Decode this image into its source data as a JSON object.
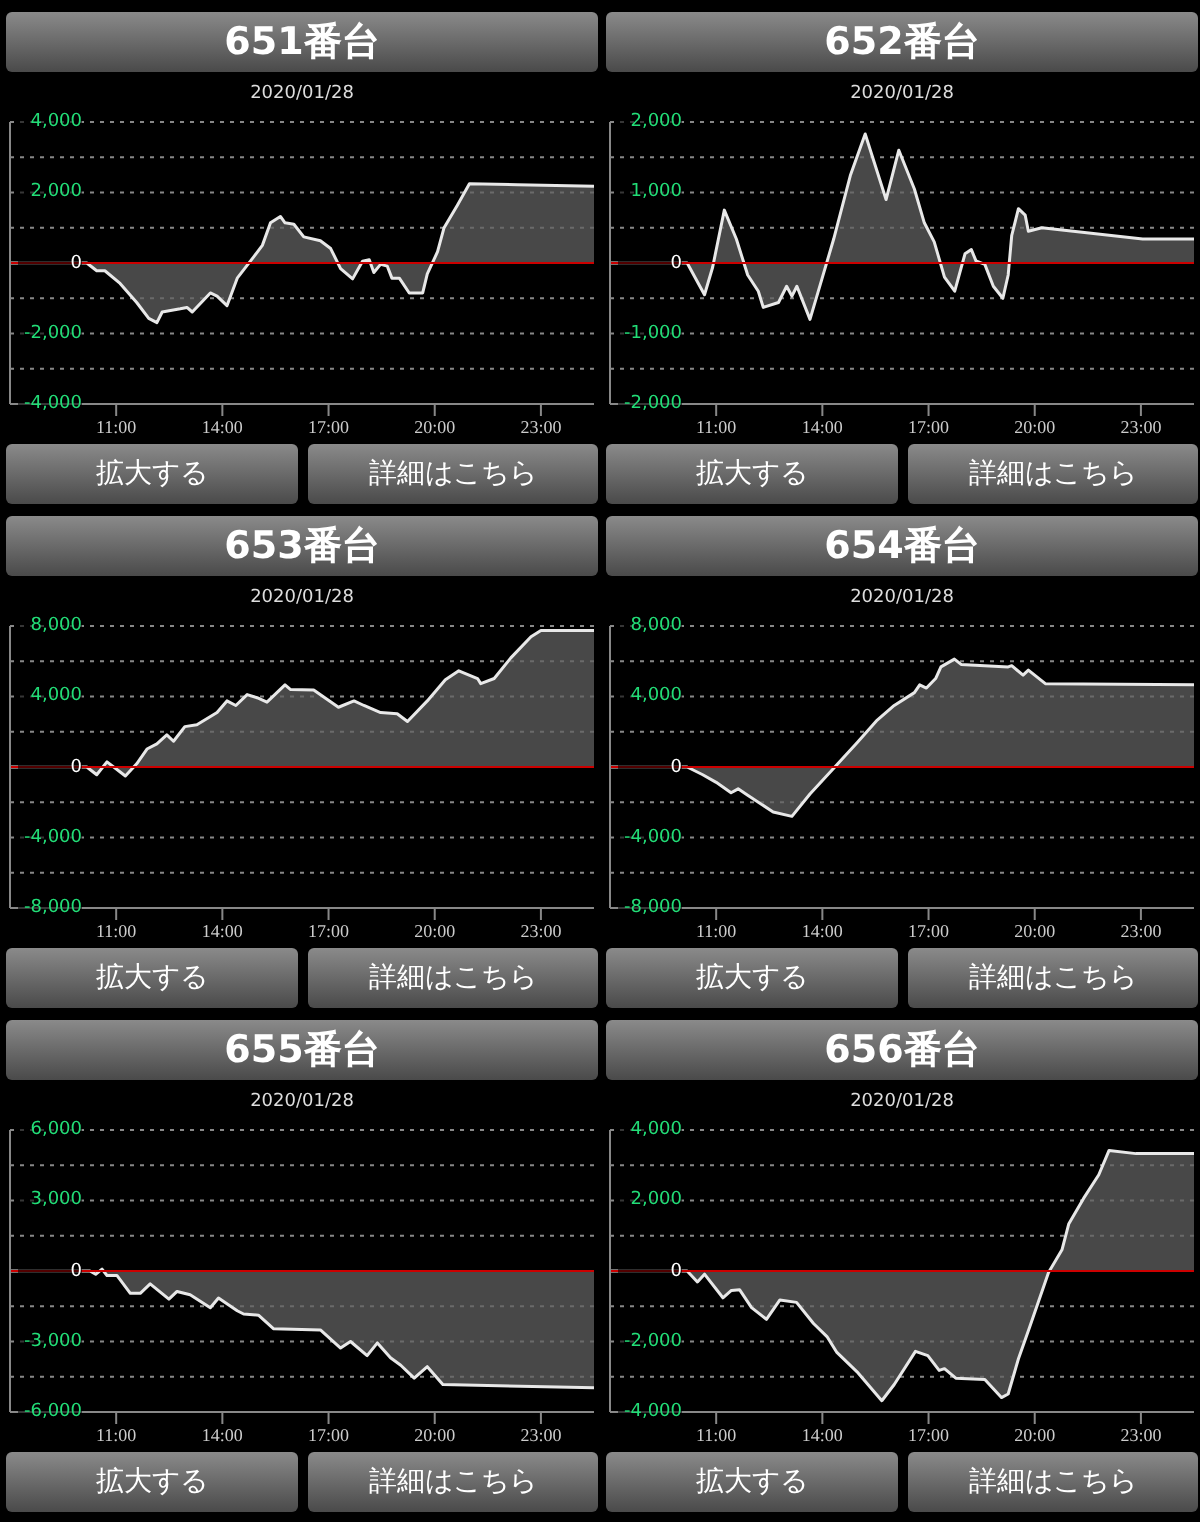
{
  "chart_data": [
    {
      "type": "area",
      "title": "651番台",
      "subtitle": "2020/01/28",
      "annotations": [
        "拡大する",
        "詳細はこちら"
      ],
      "color": "#e8e8e8",
      "grid": "y",
      "xlim": [
        8,
        24.5
      ],
      "xticks": [
        {
          "value": 11,
          "label": "11:00"
        },
        {
          "value": 14,
          "label": "14:00"
        },
        {
          "value": 17,
          "label": "17:00"
        },
        {
          "value": 20,
          "label": "20:00"
        },
        {
          "value": 23,
          "label": "23:00"
        }
      ],
      "ylim": [
        -4000,
        4000
      ],
      "yticks": [
        {
          "value": -4000,
          "label": "-4,000"
        },
        {
          "value": -3000,
          "label": null
        },
        {
          "value": -2000,
          "label": "-2,000"
        },
        {
          "value": -1000,
          "label": null
        },
        {
          "value": 0,
          "label": "0"
        },
        {
          "value": 1000,
          "label": null
        },
        {
          "value": 2000,
          "label": "2,000"
        },
        {
          "value": 3000,
          "label": null
        },
        {
          "value": 4000,
          "label": "4,000"
        }
      ],
      "ref_lines": [
        {
          "axis": "y",
          "value": 0,
          "color": "#cc0000"
        }
      ],
      "x": [
        8,
        10.17,
        10.45,
        10.68,
        11.11,
        11.58,
        11.92,
        12.15,
        12.3,
        12.81,
        13,
        13.15,
        13.66,
        13.85,
        14.13,
        14.42,
        14.89,
        15.13,
        15.36,
        15.64,
        15.77,
        16.02,
        16.3,
        16.77,
        17.06,
        17.34,
        17.68,
        17.96,
        18.15,
        18.28,
        18.47,
        18.66,
        18.79,
        19,
        19.28,
        19.66,
        19.79,
        20.08,
        20.26,
        20.64,
        20.98,
        22.34,
        24.5
      ],
      "values": [
        0,
        0,
        -220,
        -220,
        -580,
        -1120,
        -1570,
        -1690,
        -1390,
        -1300,
        -1260,
        -1390,
        -850,
        -940,
        -1210,
        -430,
        180,
        500,
        1140,
        1320,
        1140,
        1100,
        740,
        630,
        410,
        -160,
        -450,
        50,
        90,
        -270,
        -40,
        -90,
        -430,
        -430,
        -850,
        -850,
        -310,
        320,
        990,
        1640,
        2250,
        2220,
        2180
      ]
    },
    {
      "type": "area",
      "title": "652番台",
      "subtitle": "2020/01/28",
      "annotations": [
        "拡大する",
        "詳細はこちら"
      ],
      "color": "#e8e8e8",
      "grid": "y",
      "xlim": [
        8,
        24.5
      ],
      "xticks": [
        {
          "value": 11,
          "label": "11:00"
        },
        {
          "value": 14,
          "label": "14:00"
        },
        {
          "value": 17,
          "label": "17:00"
        },
        {
          "value": 20,
          "label": "20:00"
        },
        {
          "value": 23,
          "label": "23:00"
        }
      ],
      "ylim": [
        -2000,
        2000
      ],
      "yticks": [
        {
          "value": -2000,
          "label": "-2,000"
        },
        {
          "value": -1500,
          "label": null
        },
        {
          "value": -1000,
          "label": "-1,000"
        },
        {
          "value": -500,
          "label": null
        },
        {
          "value": 0,
          "label": "0"
        },
        {
          "value": 500,
          "label": null
        },
        {
          "value": 1000,
          "label": "1,000"
        },
        {
          "value": 1500,
          "label": null
        },
        {
          "value": 2000,
          "label": "2,000"
        }
      ],
      "ref_lines": [
        {
          "axis": "y",
          "value": 0,
          "color": "#cc0000"
        }
      ],
      "x": [
        8,
        10.18,
        10.67,
        10.9,
        11.23,
        11.57,
        11.89,
        12.19,
        12.33,
        12.76,
        12.99,
        13.14,
        13.28,
        13.65,
        13.98,
        14.32,
        14.79,
        15.21,
        15.8,
        16.16,
        16.6,
        16.88,
        17.16,
        17.45,
        17.74,
        18.03,
        18.21,
        18.34,
        18.59,
        18.83,
        19.1,
        19.25,
        19.35,
        19.54,
        19.73,
        19.82,
        20.2,
        23.05,
        24.5
      ],
      "values": [
        0,
        0,
        -450,
        -60,
        750,
        340,
        -170,
        -400,
        -630,
        -560,
        -330,
        -470,
        -330,
        -800,
        -240,
        340,
        1240,
        1830,
        900,
        1600,
        1050,
        570,
        300,
        -200,
        -400,
        130,
        190,
        30,
        -20,
        -330,
        -500,
        -170,
        390,
        770,
        680,
        450,
        500,
        340,
        340
      ]
    },
    {
      "type": "area",
      "title": "653番台",
      "subtitle": "2020/01/28",
      "annotations": [
        "拡大する",
        "詳細はこちら"
      ],
      "color": "#e8e8e8",
      "grid": "y",
      "xlim": [
        8,
        24.5
      ],
      "xticks": [
        {
          "value": 11,
          "label": "11:00"
        },
        {
          "value": 14,
          "label": "14:00"
        },
        {
          "value": 17,
          "label": "17:00"
        },
        {
          "value": 20,
          "label": "20:00"
        },
        {
          "value": 23,
          "label": "23:00"
        }
      ],
      "ylim": [
        -8000,
        8000
      ],
      "yticks": [
        {
          "value": -8000,
          "label": "-8,000"
        },
        {
          "value": -6000,
          "label": null
        },
        {
          "value": -4000,
          "label": "-4,000"
        },
        {
          "value": -2000,
          "label": null
        },
        0,
        {
          "value": 2000,
          "label": null
        },
        {
          "value": 4000,
          "label": "4,000"
        },
        {
          "value": 6000,
          "label": null
        },
        {
          "value": 8000,
          "label": "8,000"
        }
      ],
      "ref_lines": [
        {
          "axis": "y",
          "value": 0,
          "color": "#cc0000"
        }
      ],
      "x": [
        8,
        10.17,
        10.45,
        10.74,
        11.26,
        11.58,
        11.87,
        12.15,
        12.43,
        12.62,
        12.94,
        13.28,
        13.85,
        14.13,
        14.38,
        14.7,
        14.98,
        15.26,
        15.77,
        15.92,
        16.58,
        17.28,
        17.72,
        18,
        18.47,
        18.94,
        19.23,
        19.79,
        20.3,
        20.68,
        21.21,
        21.3,
        21.68,
        22.15,
        22.72,
        23,
        24.5
      ],
      "values": [
        0,
        0,
        -440,
        290,
        -510,
        180,
        1020,
        1310,
        1820,
        1460,
        2290,
        2400,
        3090,
        3750,
        3490,
        4110,
        3930,
        3680,
        4660,
        4400,
        4370,
        3390,
        3750,
        3490,
        3090,
        3020,
        2580,
        3750,
        4950,
        5460,
        5020,
        4730,
        5020,
        6190,
        7390,
        7750,
        7750
      ]
    },
    {
      "type": "area",
      "title": "654番台",
      "subtitle": "2020/01/28",
      "annotations": [
        "拡大する",
        "詳細はこちら"
      ],
      "color": "#e8e8e8",
      "grid": "y",
      "xlim": [
        8,
        24.5
      ],
      "xticks": [
        {
          "value": 11,
          "label": "11:00"
        },
        {
          "value": 14,
          "label": "14:00"
        },
        {
          "value": 17,
          "label": "17:00"
        },
        {
          "value": 20,
          "label": "20:00"
        },
        {
          "value": 23,
          "label": "23:00"
        }
      ],
      "ylim": [
        -8000,
        8000
      ],
      "yticks": [
        {
          "value": -8000,
          "label": "-8,000"
        },
        {
          "value": -6000,
          "label": null
        },
        {
          "value": -4000,
          "label": "-4,000"
        },
        {
          "value": -2000,
          "label": null
        },
        0,
        {
          "value": 2000,
          "label": null
        },
        {
          "value": 4000,
          "label": "4,000"
        },
        {
          "value": 6000,
          "label": null
        },
        {
          "value": 8000,
          "label": "8,000"
        }
      ],
      "ref_lines": [
        {
          "axis": "y",
          "value": 0,
          "color": "#cc0000"
        }
      ],
      "x": [
        8,
        10.18,
        10.62,
        11,
        11.42,
        11.62,
        11.89,
        12.61,
        13.14,
        13.65,
        14.32,
        14.98,
        15.55,
        16.03,
        16.6,
        16.75,
        16.94,
        17.2,
        17.35,
        17.73,
        17.92,
        19.25,
        19.35,
        19.67,
        19.82,
        20.3,
        24.5
      ],
      "values": [
        0,
        0,
        -440,
        -870,
        -1460,
        -1240,
        -1600,
        -2550,
        -2800,
        -1530,
        -70,
        1380,
        2660,
        3490,
        4220,
        4660,
        4480,
        5020,
        5680,
        6120,
        5820,
        5680,
        5750,
        5210,
        5500,
        4730,
        4660
      ]
    },
    {
      "type": "area",
      "title": "655番台",
      "subtitle": "2020/01/28",
      "annotations": [
        "拡大する",
        "詳細はこちら"
      ],
      "color": "#e8e8e8",
      "grid": "y",
      "xlim": [
        8,
        24.5
      ],
      "xticks": [
        {
          "value": 11,
          "label": "11:00"
        },
        {
          "value": 14,
          "label": "14:00"
        },
        {
          "value": 17,
          "label": "17:00"
        },
        {
          "value": 20,
          "label": "20:00"
        },
        {
          "value": 23,
          "label": "23:00"
        }
      ],
      "ylim": [
        -6000,
        6000
      ],
      "yticks": [
        {
          "value": -6000,
          "label": "-6,000"
        },
        {
          "value": -4500,
          "label": null
        },
        {
          "value": -3000,
          "label": "-3,000"
        },
        {
          "value": -1500,
          "label": null
        },
        {
          "value": 0,
          "label": "0"
        },
        {
          "value": 1500,
          "label": null
        },
        {
          "value": 3000,
          "label": "3,000"
        },
        {
          "value": 4500,
          "label": null
        },
        {
          "value": 6000,
          "label": "6,000"
        }
      ],
      "ref_lines": [
        {
          "axis": "y",
          "value": 0,
          "color": "#cc0000"
        }
      ],
      "x": [
        8,
        10.26,
        10.42,
        10.6,
        10.74,
        11.02,
        11.4,
        11.68,
        11.96,
        12.49,
        12.72,
        13.09,
        13.66,
        13.89,
        14.42,
        14.6,
        15.02,
        15.45,
        16.77,
        17.34,
        17.62,
        18.09,
        18.38,
        18.75,
        19.04,
        19.42,
        19.79,
        20.23,
        24.5
      ],
      "values": [
        0,
        0,
        -140,
        80,
        -190,
        -190,
        -950,
        -950,
        -550,
        -1200,
        -870,
        -1010,
        -1560,
        -1150,
        -1690,
        -1830,
        -1880,
        -2460,
        -2510,
        -3280,
        -3000,
        -3600,
        -3060,
        -3690,
        -4010,
        -4560,
        -4070,
        -4830,
        -4970
      ]
    },
    {
      "type": "area",
      "title": "656番台",
      "subtitle": "2020/01/28",
      "annotations": [
        "拡大する",
        "詳細はこちら"
      ],
      "color": "#e8e8e8",
      "grid": "y",
      "xlim": [
        8,
        24.5
      ],
      "xticks": [
        {
          "value": 11,
          "label": "11:00"
        },
        {
          "value": 14,
          "label": "14:00"
        },
        {
          "value": 17,
          "label": "17:00"
        },
        {
          "value": 20,
          "label": "20:00"
        },
        {
          "value": 23,
          "label": "23:00"
        }
      ],
      "ylim": [
        -4000,
        4000
      ],
      "yticks": [
        {
          "value": -4000,
          "label": "-4,000"
        },
        {
          "value": -3000,
          "label": null
        },
        {
          "value": -2000,
          "label": "-2,000"
        },
        {
          "value": -1000,
          "label": null
        },
        {
          "value": 0,
          "label": "0"
        },
        {
          "value": 1000,
          "label": null
        },
        {
          "value": 2000,
          "label": "2,000"
        },
        {
          "value": 3000,
          "label": null
        },
        {
          "value": 4000,
          "label": "4,000"
        }
      ],
      "ref_lines": [
        {
          "axis": "y",
          "value": 0,
          "color": "#cc0000"
        }
      ],
      "x": [
        8,
        10.18,
        10.47,
        10.67,
        11.19,
        11.43,
        11.66,
        12,
        12.42,
        12.8,
        13.27,
        13.75,
        14.13,
        14.41,
        14.98,
        15.68,
        16.03,
        16.63,
        16.98,
        17.3,
        17.45,
        17.77,
        18.59,
        19.06,
        19.25,
        19.54,
        19.86,
        20.39,
        20.77,
        20.96,
        21.38,
        21.81,
        22.1,
        22.86,
        24.5
      ],
      "values": [
        0,
        0,
        -310,
        -90,
        -760,
        -550,
        -530,
        -1040,
        -1370,
        -820,
        -890,
        -1490,
        -1860,
        -2310,
        -2860,
        -3680,
        -3220,
        -2280,
        -2400,
        -2820,
        -2770,
        -3040,
        -3080,
        -3590,
        -3490,
        -2490,
        -1580,
        -40,
        600,
        1330,
        2060,
        2730,
        3420,
        3330,
        3330
      ]
    }
  ]
}
